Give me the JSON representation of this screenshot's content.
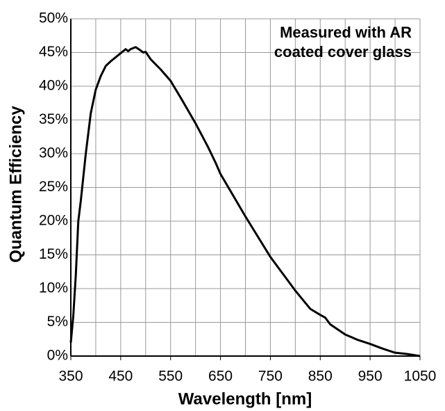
{
  "chart_data": {
    "type": "line",
    "x_label": "Wavelength [nm]",
    "y_label": "Quantum Efficiency",
    "annotation": [
      "Measured with AR",
      "coated cover glass"
    ],
    "x": [
      350,
      355,
      360,
      365,
      370,
      380,
      390,
      400,
      410,
      420,
      430,
      440,
      450,
      460,
      465,
      470,
      480,
      490,
      495,
      500,
      510,
      530,
      550,
      575,
      600,
      625,
      640,
      650,
      700,
      750,
      800,
      830,
      850,
      860,
      870,
      900,
      925,
      950,
      975,
      1000,
      1025,
      1050
    ],
    "series": [
      {
        "color": "#000000",
        "values": [
          2,
          6,
          12,
          20,
          23,
          30,
          36,
          39.5,
          41.5,
          43,
          43.7,
          44.3,
          44.9,
          45.5,
          45.2,
          45.5,
          45.8,
          45.3,
          45,
          45.1,
          44,
          42.5,
          40.8,
          37.7,
          34.5,
          31,
          28.7,
          27,
          20.7,
          14.7,
          9.7,
          7,
          6.1,
          5.7,
          4.7,
          3.2,
          2.4,
          1.8,
          1.1,
          0.5,
          0.3,
          0
        ]
      }
    ],
    "xlim": [
      350,
      1050
    ],
    "xticks": [
      350,
      450,
      550,
      650,
      750,
      850,
      950,
      1050
    ],
    "xminor_ticks": [
      400,
      500,
      600,
      700,
      800,
      900,
      1000
    ],
    "ylim": [
      0,
      50
    ],
    "yticks": [
      {
        "value": 0,
        "label": "0%"
      },
      {
        "value": 5,
        "label": "5%"
      },
      {
        "value": 10,
        "label": "10%"
      },
      {
        "value": 15,
        "label": "15%"
      },
      {
        "value": 20,
        "label": "20%"
      },
      {
        "value": 25,
        "label": "25%"
      },
      {
        "value": 30,
        "label": "30%"
      },
      {
        "value": 35,
        "label": "35%"
      },
      {
        "value": 40,
        "label": "40%"
      },
      {
        "value": 45,
        "label": "45%"
      },
      {
        "value": 50,
        "label": "50%"
      }
    ],
    "grid": true
  }
}
